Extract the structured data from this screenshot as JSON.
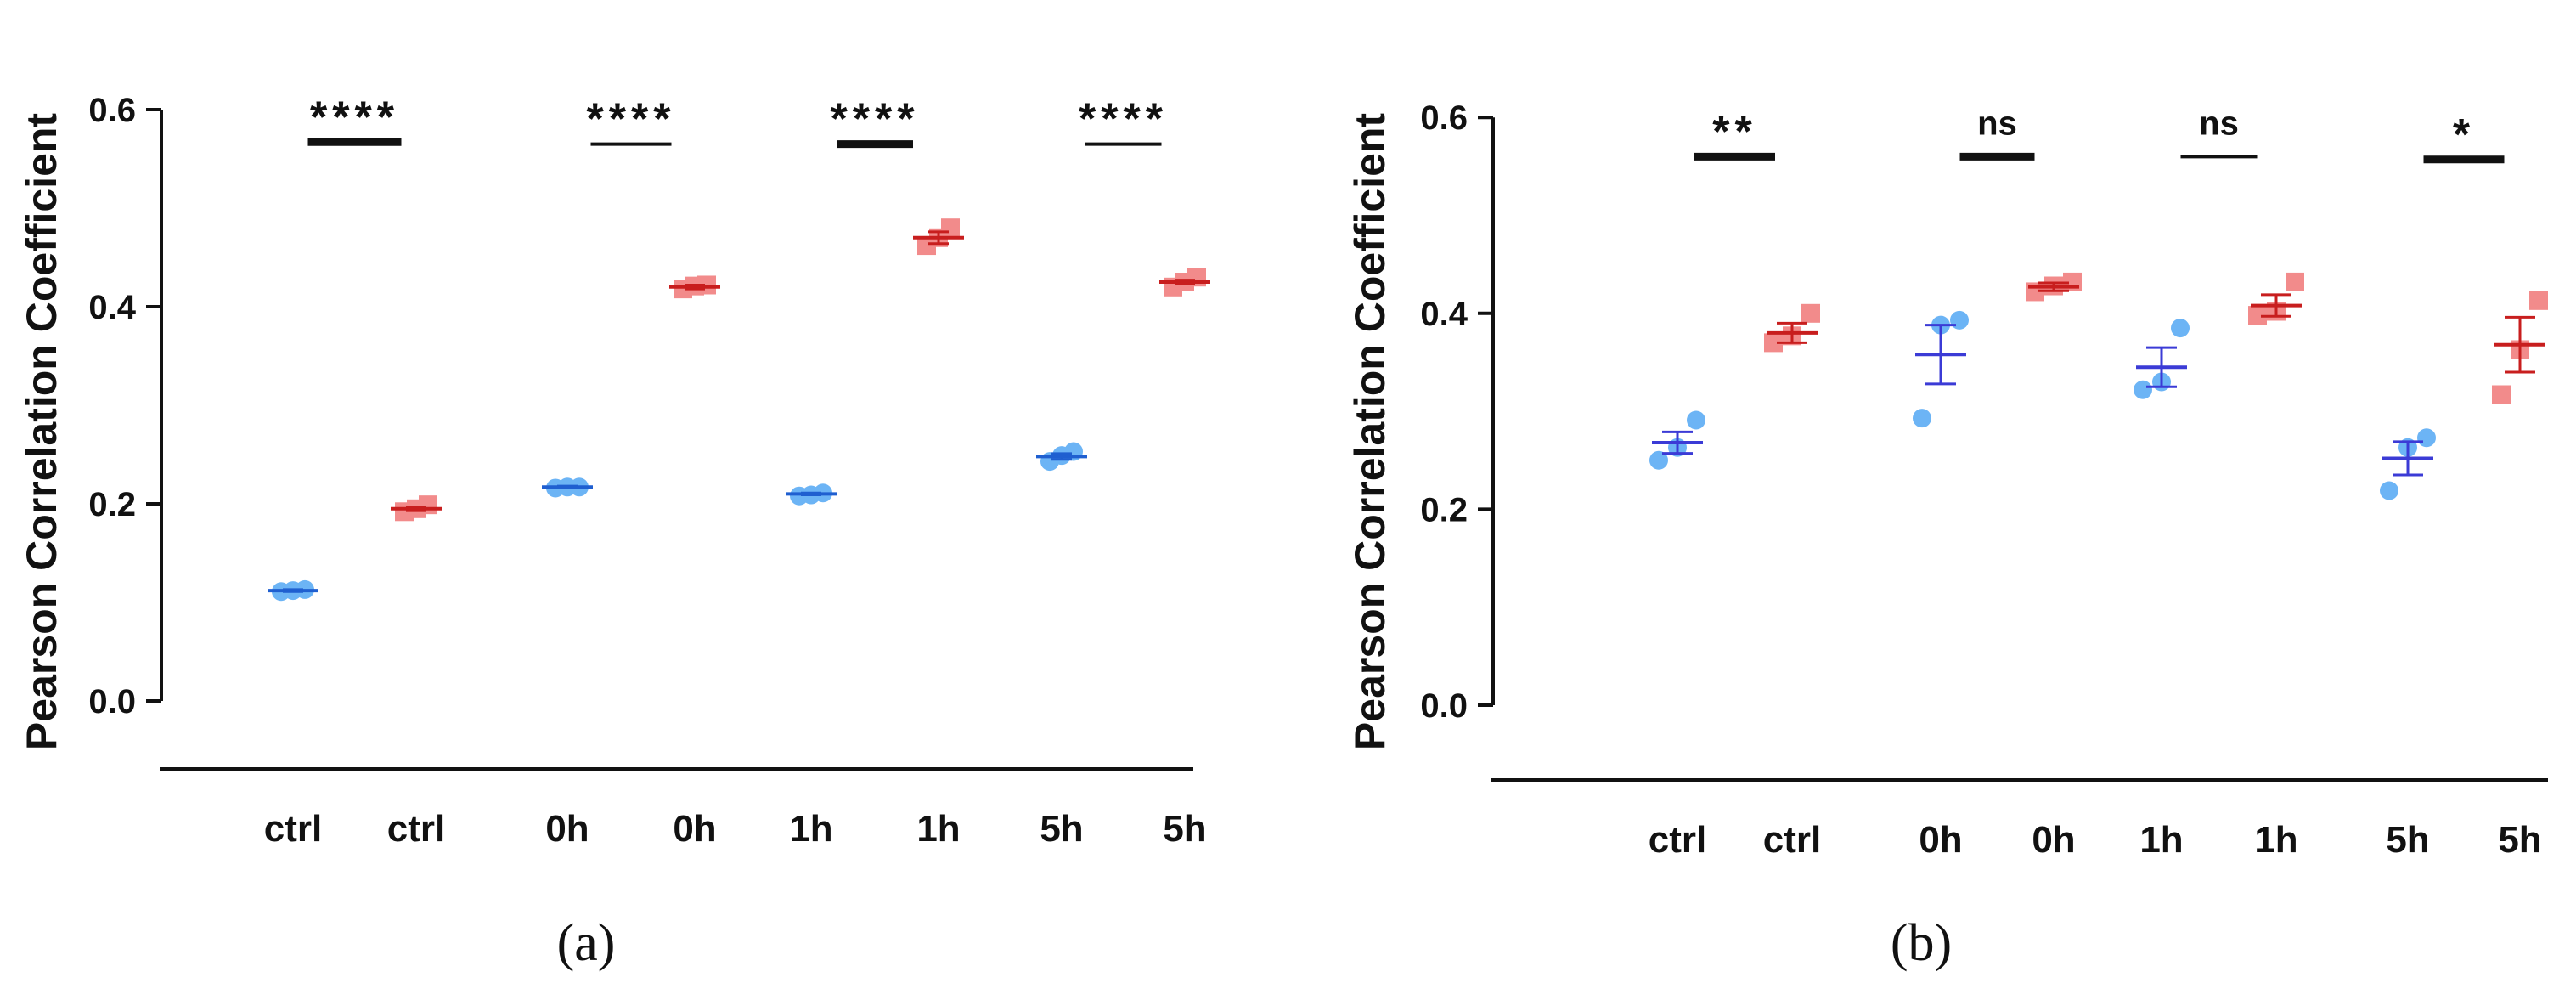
{
  "colors": {
    "blue_marker": "#6cb4f5",
    "blue_line_a": "#1f5fd0",
    "blue_line_b": "#3b3bd6",
    "red_marker": "#f28b8b",
    "red_line": "#c81e1e",
    "axis": "#111111"
  },
  "chart_data": [
    {
      "panel": "(a)",
      "type": "scatter",
      "ylabel": "Pearson Correlation Coefficient",
      "ylim": [
        0,
        0.6
      ],
      "yticks": [
        "0.0",
        "0.2",
        "0.4",
        "0.6"
      ],
      "ytick_values": [
        0,
        0.2,
        0.4,
        0.6
      ],
      "categories": [
        "ctrl",
        "ctrl",
        "0h",
        "0h",
        "1h",
        "1h",
        "5h",
        "5h"
      ],
      "groups": [
        {
          "label": "ctrl",
          "color": "blue",
          "points": [
            0.111,
            0.112,
            0.113
          ],
          "mean": 0.112,
          "sem": 0.001
        },
        {
          "label": "ctrl",
          "color": "red",
          "points": [
            0.192,
            0.195,
            0.199
          ],
          "mean": 0.195,
          "sem": 0.002
        },
        {
          "label": "0h",
          "color": "blue",
          "points": [
            0.216,
            0.217,
            0.217
          ],
          "mean": 0.217,
          "sem": 0.001
        },
        {
          "label": "0h",
          "color": "red",
          "points": [
            0.418,
            0.421,
            0.422
          ],
          "mean": 0.42,
          "sem": 0.002
        },
        {
          "label": "1h",
          "color": "blue",
          "points": [
            0.208,
            0.209,
            0.211
          ],
          "mean": 0.21,
          "sem": 0.001
        },
        {
          "label": "1h",
          "color": "red",
          "points": [
            0.462,
            0.47,
            0.48
          ],
          "mean": 0.47,
          "sem": 0.006
        },
        {
          "label": "5h",
          "color": "blue",
          "points": [
            0.243,
            0.249,
            0.253
          ],
          "mean": 0.248,
          "sem": 0.003
        },
        {
          "label": "5h",
          "color": "red",
          "points": [
            0.42,
            0.425,
            0.43
          ],
          "mean": 0.425,
          "sem": 0.002
        }
      ],
      "significance": [
        {
          "pair": [
            0,
            1
          ],
          "label": "****",
          "y": 0.567
        },
        {
          "pair": [
            2,
            3
          ],
          "label": "****",
          "y": 0.565
        },
        {
          "pair": [
            4,
            5
          ],
          "label": "****",
          "y": 0.565
        },
        {
          "pair": [
            6,
            7
          ],
          "label": "****",
          "y": 0.565
        }
      ]
    },
    {
      "panel": "(b)",
      "type": "scatter",
      "ylabel": "Pearson Correlation Coefficient",
      "ylim": [
        0,
        0.6
      ],
      "yticks": [
        "0.0",
        "0.2",
        "0.4",
        "0.6"
      ],
      "ytick_values": [
        0,
        0.2,
        0.4,
        0.6
      ],
      "categories": [
        "ctrl",
        "ctrl",
        "0h",
        "0h",
        "1h",
        "1h",
        "5h",
        "5h"
      ],
      "groups": [
        {
          "label": "ctrl",
          "color": "blue",
          "points": [
            0.25,
            0.263,
            0.291
          ],
          "mean": 0.268,
          "sem": 0.011
        },
        {
          "label": "ctrl",
          "color": "red",
          "points": [
            0.37,
            0.377,
            0.4
          ],
          "mean": 0.38,
          "sem": 0.01
        },
        {
          "label": "0h",
          "color": "blue",
          "points": [
            0.293,
            0.388,
            0.393
          ],
          "mean": 0.358,
          "sem": 0.03
        },
        {
          "label": "0h",
          "color": "red",
          "points": [
            0.422,
            0.428,
            0.432
          ],
          "mean": 0.427,
          "sem": 0.004
        },
        {
          "label": "1h",
          "color": "blue",
          "points": [
            0.322,
            0.33,
            0.385
          ],
          "mean": 0.345,
          "sem": 0.02
        },
        {
          "label": "1h",
          "color": "red",
          "points": [
            0.398,
            0.402,
            0.432
          ],
          "mean": 0.408,
          "sem": 0.011
        },
        {
          "label": "5h",
          "color": "blue",
          "points": [
            0.219,
            0.263,
            0.273
          ],
          "mean": 0.252,
          "sem": 0.017
        },
        {
          "label": "5h",
          "color": "red",
          "points": [
            0.317,
            0.363,
            0.413
          ],
          "mean": 0.368,
          "sem": 0.028
        }
      ],
      "significance": [
        {
          "pair": [
            0,
            1
          ],
          "label": "**",
          "y": 0.56
        },
        {
          "pair": [
            2,
            3
          ],
          "label": "ns",
          "y": 0.56
        },
        {
          "pair": [
            4,
            5
          ],
          "label": "ns",
          "y": 0.56
        },
        {
          "pair": [
            6,
            7
          ],
          "label": "*",
          "y": 0.557
        }
      ]
    }
  ]
}
